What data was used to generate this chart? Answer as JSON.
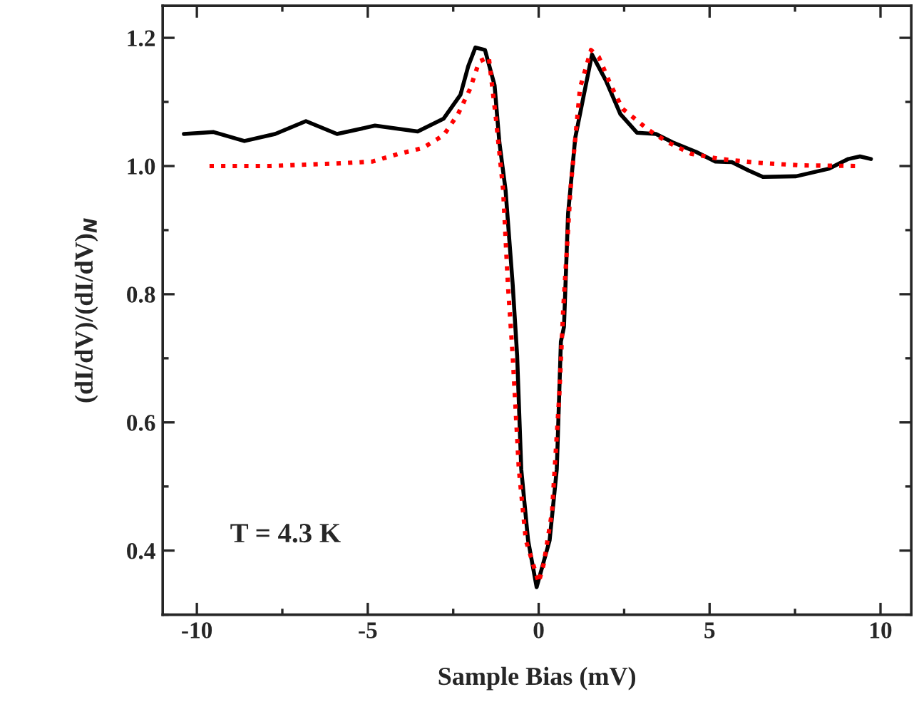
{
  "chart_data": {
    "type": "line",
    "xlabel": "Sample Bias (mV)",
    "ylabel": "(dI/dV)/(dI/dV)$_{N}$",
    "annotations": [
      "T = 4.3 K"
    ],
    "xlim": [
      -11,
      10.9
    ],
    "ylim": [
      0.3,
      1.25
    ],
    "xticks": [
      -10,
      {
        "value": -7.5,
        "label": null
      },
      -5,
      {
        "value": -2.5,
        "label": null
      },
      0,
      {
        "value": 2.5,
        "label": null
      },
      5,
      {
        "value": 7.5,
        "label": null
      },
      10
    ],
    "yticks": [
      {
        "value": 0.3,
        "label": null
      },
      {
        "value": 0.4,
        "label": "0.4"
      },
      {
        "value": 0.5,
        "label": null
      },
      {
        "value": 0.6,
        "label": "0.6"
      },
      {
        "value": 0.7,
        "label": null
      },
      {
        "value": 0.8,
        "label": "0.8"
      },
      {
        "value": 0.9,
        "label": null
      },
      {
        "value": 1.0,
        "label": "1.0"
      },
      {
        "value": 1.1,
        "label": null
      },
      {
        "value": 1.2,
        "label": "1.2"
      }
    ],
    "grid": false,
    "legend": false,
    "marker": "none",
    "series": [
      {
        "color": "#000000",
        "line_style": "solid",
        "x": [
          -10.38,
          -9.51,
          -8.61,
          -7.71,
          -6.81,
          -5.9,
          -4.79,
          -3.54,
          -2.78,
          -2.29,
          -2.06,
          -1.85,
          -1.57,
          -1.29,
          -1.15,
          -0.97,
          -0.76,
          -0.63,
          -0.51,
          -0.31,
          -0.06,
          0.32,
          0.53,
          0.65,
          0.74,
          0.86,
          1.07,
          1.28,
          1.56,
          1.97,
          2.39,
          2.875,
          3.43,
          3.92,
          4.61,
          5.17,
          5.65,
          6.14,
          6.56,
          7.53,
          8.5,
          9.06,
          9.4,
          9.72
        ],
        "values": [
          1.05,
          1.053,
          1.039,
          1.05,
          1.07,
          1.05,
          1.063,
          1.054,
          1.074,
          1.111,
          1.156,
          1.185,
          1.181,
          1.126,
          1.037,
          0.963,
          0.815,
          0.704,
          0.527,
          0.416,
          0.343,
          0.416,
          0.527,
          0.726,
          0.749,
          0.926,
          1.044,
          1.1,
          1.174,
          1.133,
          1.081,
          1.052,
          1.05,
          1.037,
          1.022,
          1.007,
          1.006,
          0.993,
          0.983,
          0.984,
          0.996,
          1.011,
          1.015,
          1.011
        ]
      },
      {
        "color": "#ff0000",
        "line_style": "dotted",
        "x": [
          -9.63,
          -7.85,
          -5.9,
          -4.86,
          -4.1,
          -3.4,
          -2.78,
          -2.36,
          -2.01,
          -1.74,
          -1.46,
          -1.25,
          -1.04,
          -0.9,
          -0.76,
          -0.58,
          -0.375,
          -0.17,
          0,
          0.15,
          0.39,
          0.6,
          0.72,
          0.93,
          1.21,
          1.53,
          1.76,
          2.11,
          2.46,
          2.81,
          3.22,
          3.78,
          4.47,
          5.31,
          6.42,
          7.67,
          9.33
        ],
        "values": [
          1.0,
          1.0,
          1.004,
          1.007,
          1.019,
          1.028,
          1.048,
          1.081,
          1.12,
          1.163,
          1.17,
          1.074,
          0.963,
          0.815,
          0.704,
          0.527,
          0.416,
          0.38,
          0.35,
          0.38,
          0.46,
          0.64,
          0.778,
          0.963,
          1.122,
          1.181,
          1.17,
          1.126,
          1.089,
          1.074,
          1.056,
          1.037,
          1.019,
          1.011,
          1.005,
          1.001,
          1.0
        ]
      }
    ]
  }
}
